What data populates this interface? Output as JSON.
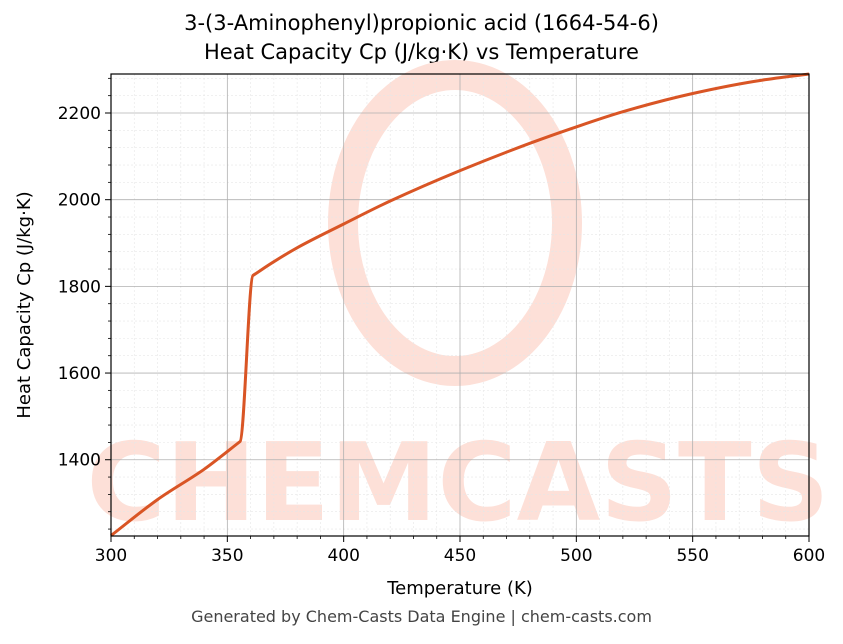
{
  "chart_data": {
    "type": "line",
    "title": "3-(3-Aminophenyl)propionic acid (1664-54-6)",
    "subtitle": "Heat Capacity Cp (J/kg·K) vs Temperature",
    "xlabel": "Temperature (K)",
    "ylabel": "Heat Capacity Cp (J/kg·K)",
    "xlim": [
      300,
      600
    ],
    "ylim": [
      1224,
      2290
    ],
    "xticks": [
      300,
      350,
      400,
      450,
      500,
      550,
      600
    ],
    "yticks": [
      1400,
      1600,
      1800,
      2000,
      2200
    ],
    "grid": true,
    "line_color": "#d95525",
    "series": [
      {
        "x": [
          300,
          320,
          340,
          355.5,
          361,
          370,
          380,
          400,
          420,
          450,
          480,
          500,
          520,
          550,
          580,
          600
        ],
        "values": [
          1225,
          1308,
          1378,
          1442,
          1825,
          1857,
          1889,
          1944,
          1997,
          2067,
          2130,
          2168,
          2203,
          2245,
          2276,
          2290
        ]
      }
    ]
  },
  "watermark": "CHEMCASTS",
  "footer": "Generated by Chem-Casts Data Engine | chem-casts.com"
}
